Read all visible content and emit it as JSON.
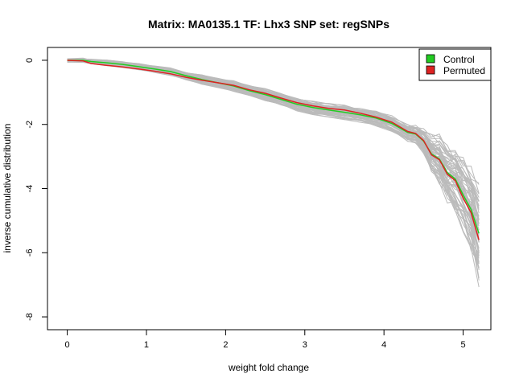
{
  "chart_data": {
    "type": "line",
    "title": "Matrix: MA0135.1 TF: Lhx3 SNP set: regSNPs",
    "xlabel": "weight fold change",
    "ylabel": "inverse cumulative distribution",
    "xlim": [
      -0.25,
      5.35
    ],
    "ylim": [
      -8.4,
      0.4
    ],
    "xticks": [
      "0",
      "1",
      "2",
      "3",
      "4",
      "5"
    ],
    "yticks": [
      "0",
      "-2",
      "-4",
      "-6",
      "-8"
    ],
    "legend_position": "top-right",
    "series": [
      {
        "name": "Control",
        "color": "#22cc22",
        "x": [
          0,
          0.2,
          0.3,
          0.5,
          0.7,
          0.9,
          1.1,
          1.3,
          1.5,
          1.7,
          1.9,
          2.1,
          2.3,
          2.5,
          2.7,
          2.9,
          3.1,
          3.3,
          3.5,
          3.7,
          3.9,
          4.1,
          4.3,
          4.4,
          4.5,
          4.6,
          4.7,
          4.8,
          4.9,
          5.0,
          5.1,
          5.2
        ],
        "values": [
          0,
          0,
          -0.04,
          -0.08,
          -0.13,
          -0.2,
          -0.27,
          -0.35,
          -0.48,
          -0.6,
          -0.7,
          -0.8,
          -0.95,
          -1.07,
          -1.22,
          -1.37,
          -1.47,
          -1.55,
          -1.62,
          -1.7,
          -1.8,
          -1.97,
          -2.25,
          -2.3,
          -2.52,
          -2.92,
          -3.08,
          -3.5,
          -3.7,
          -4.2,
          -4.65,
          -5.4
        ]
      },
      {
        "name": "Permuted",
        "color": "#dd2222",
        "x": [
          0,
          0.2,
          0.3,
          0.5,
          0.7,
          0.9,
          1.1,
          1.3,
          1.5,
          1.7,
          1.9,
          2.1,
          2.3,
          2.5,
          2.7,
          2.9,
          3.1,
          3.3,
          3.5,
          3.7,
          3.9,
          4.1,
          4.3,
          4.4,
          4.5,
          4.6,
          4.7,
          4.8,
          4.9,
          5.0,
          5.1,
          5.2
        ],
        "values": [
          0,
          -0.02,
          -0.1,
          -0.16,
          -0.21,
          -0.27,
          -0.34,
          -0.42,
          -0.53,
          -0.62,
          -0.7,
          -0.78,
          -0.92,
          -1.03,
          -1.18,
          -1.32,
          -1.42,
          -1.5,
          -1.55,
          -1.65,
          -1.77,
          -1.93,
          -2.22,
          -2.28,
          -2.5,
          -2.95,
          -3.1,
          -3.55,
          -3.75,
          -4.3,
          -4.75,
          -5.6
        ]
      }
    ],
    "background_series": {
      "color": "#bbbbbb",
      "count": 60
    }
  }
}
